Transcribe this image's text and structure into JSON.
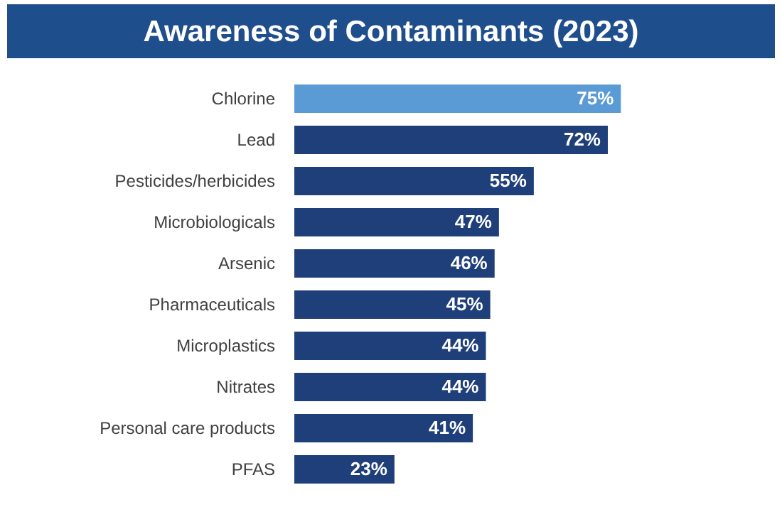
{
  "chart_data": {
    "type": "bar",
    "orientation": "horizontal",
    "title": "Awareness of Contaminants (2023)",
    "categories": [
      "Chlorine",
      "Lead",
      "Pesticides/herbicides",
      "Microbiologicals",
      "Arsenic",
      "Pharmaceuticals",
      "Microplastics",
      "Nitrates",
      "Personal care products",
      "PFAS"
    ],
    "values": [
      75,
      72,
      55,
      47,
      46,
      45,
      44,
      44,
      41,
      23
    ],
    "value_labels": [
      "75%",
      "72%",
      "55%",
      "47%",
      "46%",
      "45%",
      "44%",
      "44%",
      "41%",
      "23%"
    ],
    "colors": [
      "#5b9bd5",
      "#1f3f7a",
      "#1f3f7a",
      "#1f3f7a",
      "#1f3f7a",
      "#1f3f7a",
      "#1f3f7a",
      "#1f3f7a",
      "#1f3f7a",
      "#1f3f7a"
    ],
    "tick_labels": "y",
    "legend": false
  }
}
